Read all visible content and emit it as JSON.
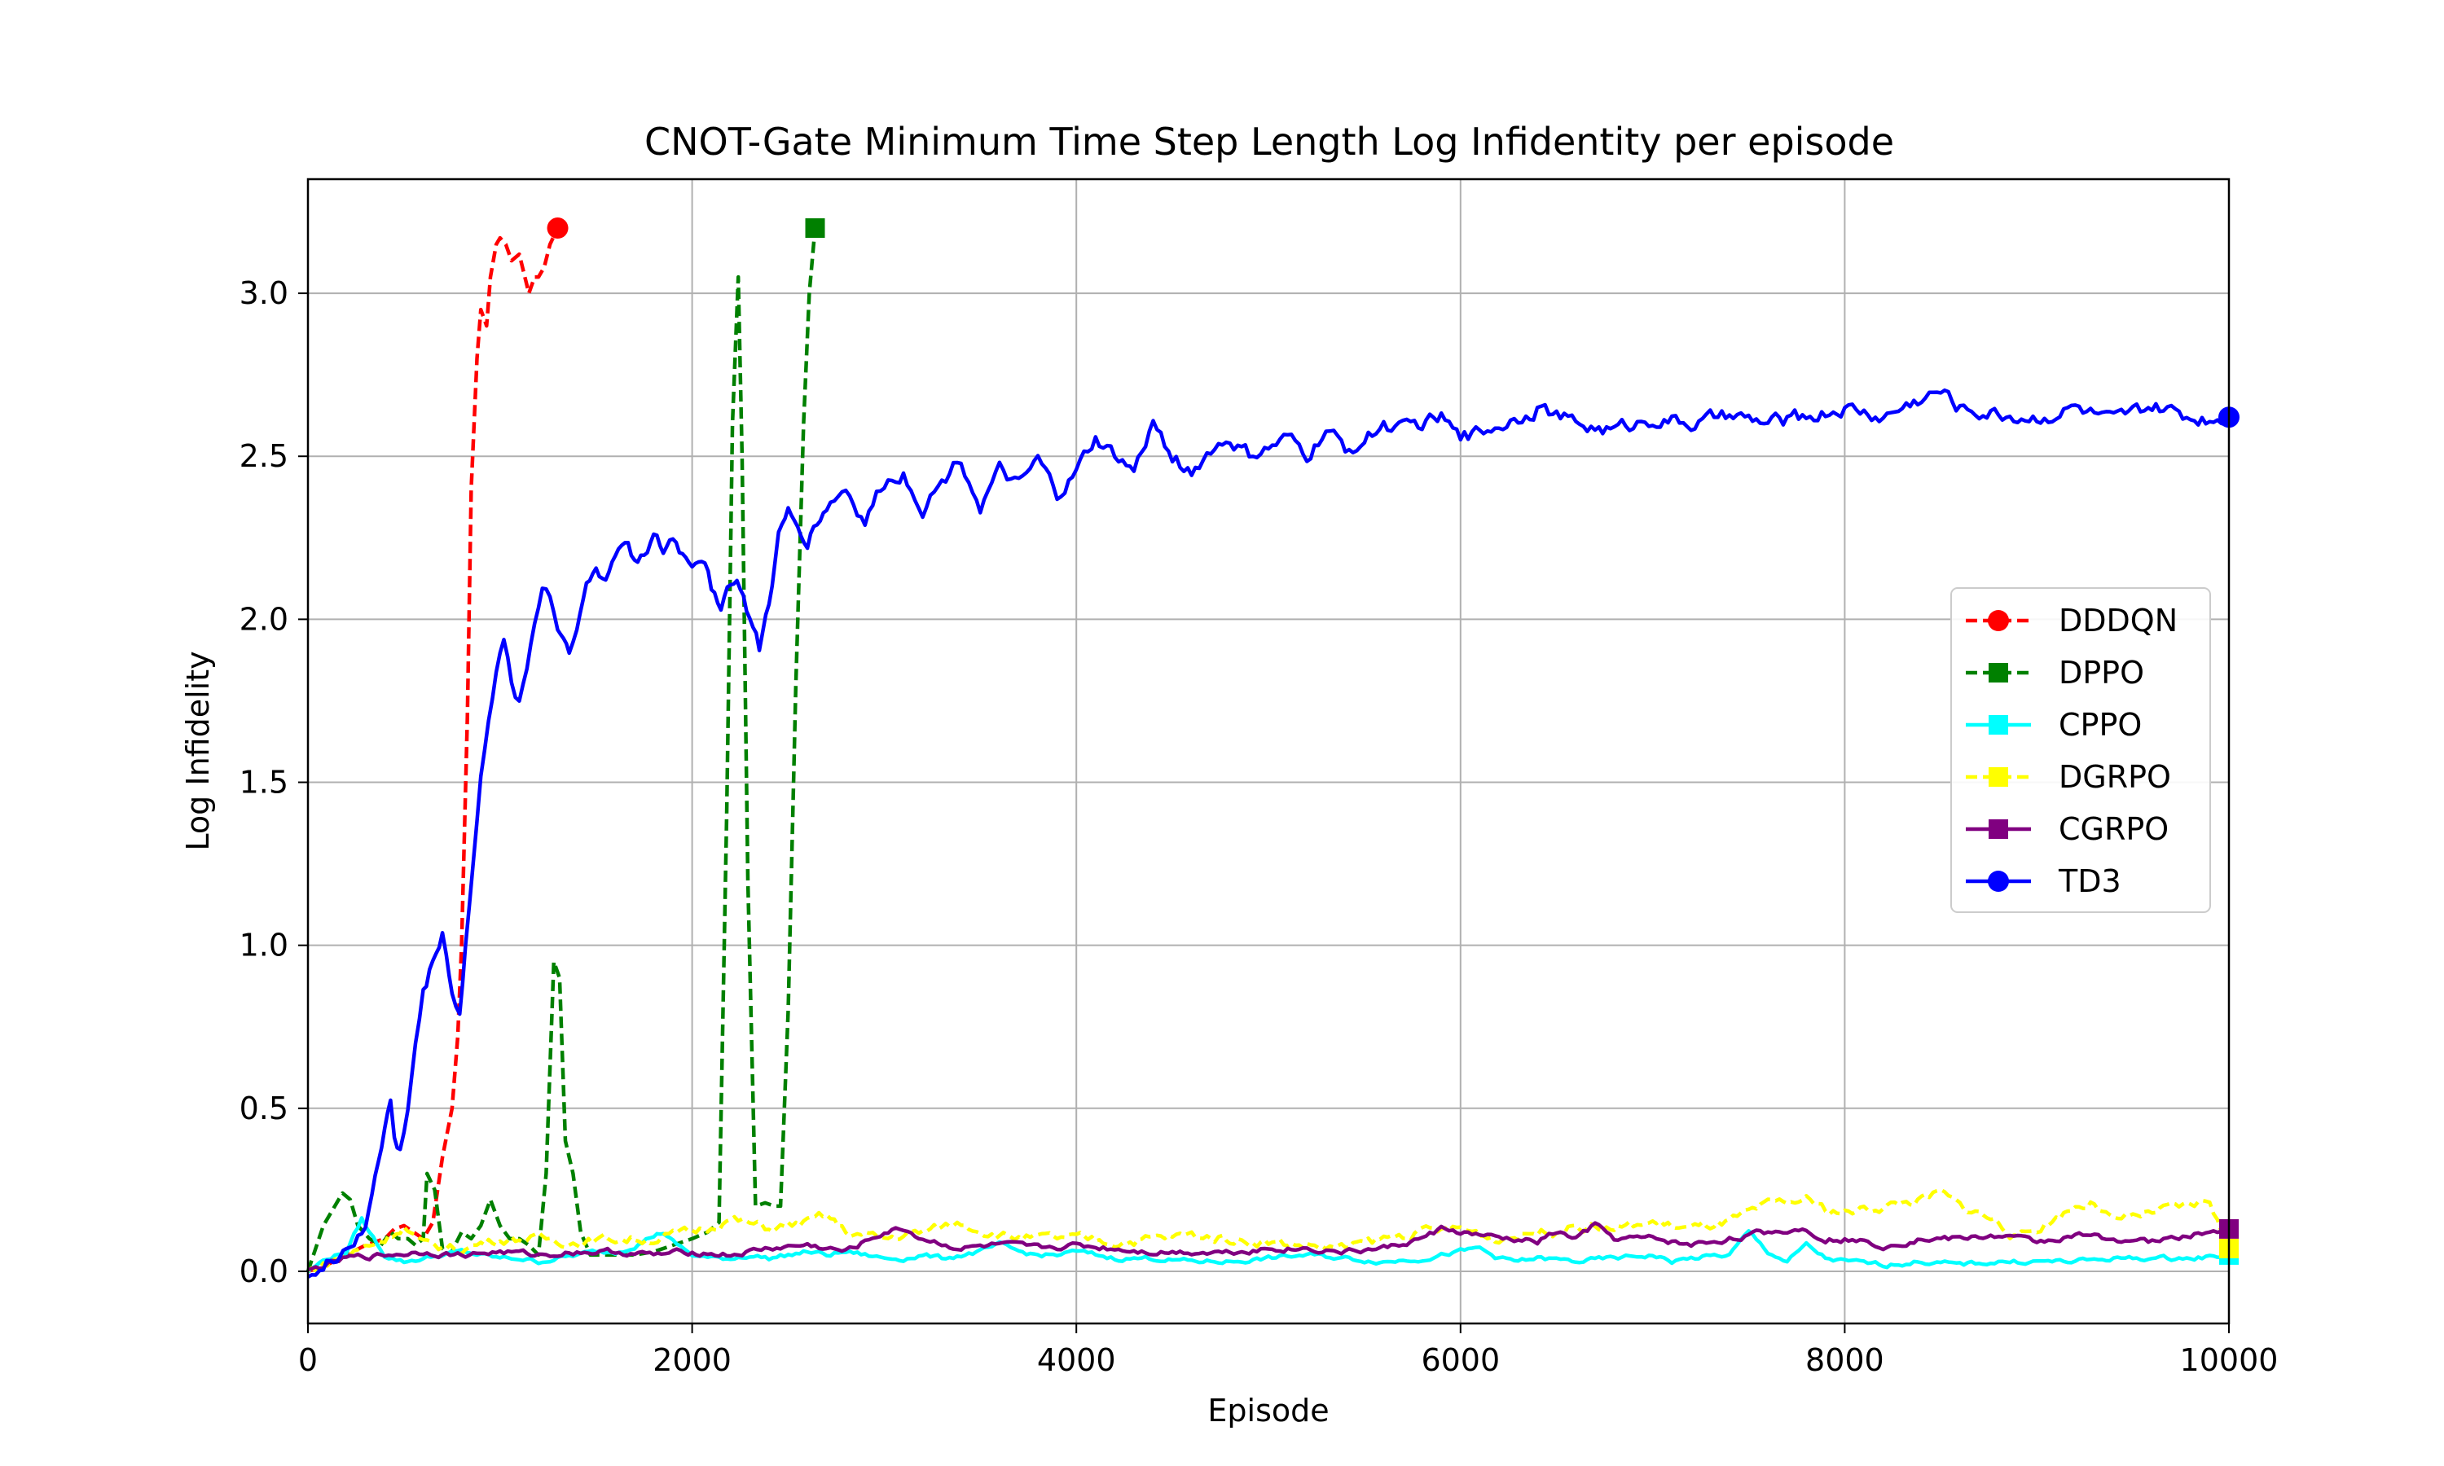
{
  "chart_data": {
    "type": "line",
    "title": "CNOT-Gate Minimum Time Step Length Log Infidentity per episode",
    "xlabel": "Episode",
    "ylabel": "Log Infidelity",
    "xlim": [
      0,
      10000
    ],
    "ylim": [
      -0.16,
      3.35
    ],
    "xticks": [
      0,
      2000,
      4000,
      6000,
      8000,
      10000
    ],
    "yticks": [
      0.0,
      0.5,
      1.0,
      1.5,
      2.0,
      2.5,
      3.0
    ],
    "xtick_labels": [
      "0",
      "2000",
      "4000",
      "6000",
      "8000",
      "10000"
    ],
    "ytick_labels": [
      "0.0",
      "0.5",
      "1.0",
      "1.5",
      "2.0",
      "2.5",
      "3.0"
    ],
    "grid": true,
    "legend_position": "center-right",
    "series": [
      {
        "name": "DDDQN",
        "color": "#ff0000",
        "style": "dashed",
        "marker": "circle",
        "end_marker_only": true,
        "x": [
          0,
          100,
          200,
          300,
          400,
          450,
          500,
          550,
          600,
          650,
          700,
          750,
          780,
          800,
          830,
          850,
          880,
          900,
          930,
          950,
          980,
          1000,
          1030,
          1060,
          1100,
          1150,
          1180,
          1200,
          1230,
          1260,
          1300
        ],
        "y": [
          0.0,
          0.02,
          0.05,
          0.08,
          0.1,
          0.13,
          0.14,
          0.12,
          0.1,
          0.15,
          0.35,
          0.5,
          0.72,
          1.0,
          1.7,
          2.4,
          2.8,
          2.95,
          2.9,
          3.05,
          3.15,
          3.17,
          3.15,
          3.1,
          3.12,
          3.0,
          3.05,
          3.05,
          3.08,
          3.15,
          3.2
        ]
      },
      {
        "name": "DPPO",
        "color": "#008000",
        "style": "dashed",
        "marker": "square",
        "end_marker_only": true,
        "x": [
          0,
          80,
          120,
          180,
          220,
          260,
          320,
          380,
          430,
          470,
          520,
          560,
          600,
          620,
          660,
          700,
          740,
          800,
          850,
          900,
          950,
          1000,
          1050,
          1100,
          1150,
          1200,
          1240,
          1280,
          1310,
          1340,
          1380,
          1420,
          1470,
          1520,
          1600,
          1700,
          1800,
          1900,
          2000,
          2080,
          2140,
          2180,
          2210,
          2240,
          2260,
          2290,
          2330,
          2380,
          2430,
          2460,
          2500,
          2540,
          2580,
          2610,
          2640
        ],
        "y": [
          0.0,
          0.14,
          0.18,
          0.24,
          0.22,
          0.14,
          0.1,
          0.08,
          0.12,
          0.1,
          0.1,
          0.08,
          0.1,
          0.3,
          0.25,
          0.07,
          0.05,
          0.12,
          0.1,
          0.14,
          0.22,
          0.14,
          0.1,
          0.1,
          0.08,
          0.05,
          0.3,
          0.95,
          0.9,
          0.4,
          0.3,
          0.12,
          0.05,
          0.05,
          0.05,
          0.05,
          0.06,
          0.08,
          0.1,
          0.12,
          0.15,
          1.4,
          2.6,
          3.05,
          2.5,
          1.2,
          0.2,
          0.21,
          0.2,
          0.2,
          0.8,
          1.8,
          2.6,
          3.0,
          3.2
        ]
      },
      {
        "name": "CPPO",
        "color": "#00ffff",
        "style": "solid",
        "marker": "square",
        "end_marker_only": true,
        "x": [
          0,
          100,
          200,
          280,
          320,
          400,
          500,
          600,
          700,
          800,
          900,
          1000,
          1100,
          1200,
          1300,
          1400,
          1500,
          1600,
          1700,
          1800,
          1850,
          1900,
          2000,
          2100,
          2200,
          2300,
          2400,
          2500,
          2600,
          2700,
          2800,
          2900,
          3000,
          3100,
          3200,
          3300,
          3400,
          3500,
          3600,
          3700,
          3800,
          3900,
          4000,
          4200,
          4400,
          4600,
          4800,
          5000,
          5200,
          5400,
          5600,
          5800,
          6000,
          6100,
          6200,
          6300,
          6400,
          6600,
          6800,
          7000,
          7100,
          7200,
          7400,
          7500,
          7600,
          7700,
          7800,
          7900,
          8000,
          8200,
          8400,
          8600,
          8800,
          9000,
          9200,
          9400,
          9600,
          9800,
          10000
        ],
        "y": [
          0.0,
          0.04,
          0.06,
          0.16,
          0.12,
          0.05,
          0.03,
          0.04,
          0.05,
          0.06,
          0.05,
          0.04,
          0.04,
          0.03,
          0.04,
          0.05,
          0.06,
          0.06,
          0.08,
          0.11,
          0.12,
          0.09,
          0.05,
          0.04,
          0.04,
          0.05,
          0.04,
          0.05,
          0.06,
          0.05,
          0.06,
          0.05,
          0.04,
          0.04,
          0.05,
          0.04,
          0.05,
          0.06,
          0.08,
          0.06,
          0.05,
          0.05,
          0.06,
          0.04,
          0.04,
          0.03,
          0.03,
          0.04,
          0.05,
          0.04,
          0.03,
          0.04,
          0.06,
          0.07,
          0.04,
          0.03,
          0.04,
          0.03,
          0.04,
          0.05,
          0.03,
          0.04,
          0.05,
          0.12,
          0.06,
          0.03,
          0.08,
          0.04,
          0.03,
          0.02,
          0.03,
          0.02,
          0.03,
          0.03,
          0.03,
          0.04,
          0.04,
          0.04,
          0.05
        ]
      },
      {
        "name": "DGRPO",
        "color": "#ffff00",
        "style": "dashed",
        "marker": "square",
        "end_marker_only": true,
        "x": [
          0,
          200,
          400,
          500,
          600,
          800,
          1000,
          1200,
          1400,
          1600,
          1800,
          2000,
          2100,
          2200,
          2400,
          2600,
          2700,
          2800,
          3000,
          3200,
          3400,
          3600,
          3800,
          4000,
          4200,
          4400,
          4600,
          4800,
          5000,
          5200,
          5400,
          5600,
          5800,
          6000,
          6200,
          6400,
          6600,
          6800,
          7000,
          7200,
          7400,
          7600,
          7800,
          7900,
          8000,
          8200,
          8400,
          8500,
          8600,
          8700,
          8800,
          8900,
          9000,
          9200,
          9300,
          9400,
          9600,
          9800,
          9900,
          10000
        ],
        "y": [
          0.0,
          0.05,
          0.1,
          0.14,
          0.08,
          0.07,
          0.1,
          0.1,
          0.09,
          0.1,
          0.1,
          0.12,
          0.14,
          0.16,
          0.13,
          0.15,
          0.17,
          0.12,
          0.1,
          0.12,
          0.15,
          0.11,
          0.1,
          0.1,
          0.09,
          0.1,
          0.11,
          0.1,
          0.09,
          0.08,
          0.07,
          0.1,
          0.12,
          0.13,
          0.1,
          0.12,
          0.14,
          0.13,
          0.15,
          0.13,
          0.15,
          0.2,
          0.22,
          0.19,
          0.18,
          0.2,
          0.22,
          0.24,
          0.2,
          0.18,
          0.15,
          0.1,
          0.13,
          0.2,
          0.21,
          0.15,
          0.18,
          0.2,
          0.22,
          0.07
        ]
      },
      {
        "name": "CGRPO",
        "color": "#800080",
        "style": "solid",
        "marker": "square",
        "end_marker_only": true,
        "x": [
          0,
          200,
          400,
          600,
          800,
          1000,
          1200,
          1400,
          1600,
          1800,
          2000,
          2200,
          2400,
          2600,
          2800,
          3000,
          3100,
          3200,
          3400,
          3600,
          3800,
          4000,
          4200,
          4400,
          4600,
          4800,
          5000,
          5200,
          5400,
          5600,
          5800,
          5900,
          6000,
          6200,
          6400,
          6500,
          6600,
          6700,
          6800,
          7000,
          7200,
          7400,
          7600,
          7800,
          7900,
          8000,
          8200,
          8400,
          8600,
          8800,
          9000,
          9200,
          9400,
          9600,
          9800,
          10000
        ],
        "y": [
          0.0,
          0.04,
          0.05,
          0.06,
          0.05,
          0.06,
          0.05,
          0.06,
          0.06,
          0.05,
          0.06,
          0.05,
          0.07,
          0.08,
          0.06,
          0.12,
          0.13,
          0.1,
          0.07,
          0.08,
          0.07,
          0.08,
          0.07,
          0.06,
          0.06,
          0.06,
          0.07,
          0.07,
          0.06,
          0.07,
          0.1,
          0.13,
          0.12,
          0.1,
          0.09,
          0.12,
          0.1,
          0.14,
          0.1,
          0.1,
          0.08,
          0.1,
          0.12,
          0.13,
          0.1,
          0.1,
          0.08,
          0.1,
          0.1,
          0.11,
          0.09,
          0.11,
          0.1,
          0.09,
          0.11,
          0.13
        ]
      },
      {
        "name": "TD3",
        "color": "#0000ff",
        "style": "solid",
        "marker": "circle",
        "end_marker_only": true,
        "x": [
          0,
          80,
          150,
          200,
          260,
          300,
          350,
          400,
          430,
          450,
          480,
          520,
          560,
          600,
          650,
          700,
          720,
          750,
          790,
          820,
          860,
          900,
          940,
          980,
          1020,
          1060,
          1100,
          1140,
          1180,
          1220,
          1260,
          1300,
          1330,
          1360,
          1400,
          1450,
          1500,
          1550,
          1600,
          1650,
          1700,
          1750,
          1800,
          1850,
          1900,
          1950,
          2000,
          2050,
          2100,
          2150,
          2200,
          2250,
          2300,
          2350,
          2400,
          2450,
          2500,
          2550,
          2600,
          2650,
          2700,
          2800,
          2900,
          3000,
          3100,
          3200,
          3300,
          3400,
          3500,
          3600,
          3700,
          3800,
          3900,
          4000,
          4100,
          4200,
          4300,
          4400,
          4500,
          4600,
          4700,
          4800,
          4900,
          5000,
          5100,
          5200,
          5300,
          5400,
          5500,
          5600,
          5700,
          5800,
          5900,
          6000,
          6200,
          6400,
          6600,
          6800,
          7000,
          7200,
          7400,
          7600,
          7800,
          8000,
          8200,
          8400,
          8500,
          8600,
          8800,
          9000,
          9200,
          9400,
          9600,
          9800,
          10000
        ],
        "y": [
          0.0,
          0.0,
          0.05,
          0.08,
          0.1,
          0.12,
          0.3,
          0.45,
          0.52,
          0.4,
          0.36,
          0.5,
          0.7,
          0.85,
          0.95,
          1.05,
          0.98,
          0.85,
          0.8,
          1.0,
          1.25,
          1.5,
          1.7,
          1.85,
          1.92,
          1.8,
          1.75,
          1.85,
          2.0,
          2.1,
          2.08,
          1.98,
          1.95,
          1.9,
          2.0,
          2.1,
          2.15,
          2.12,
          2.2,
          2.25,
          2.18,
          2.22,
          2.25,
          2.2,
          2.25,
          2.2,
          2.18,
          2.2,
          2.1,
          2.05,
          2.12,
          2.1,
          2.0,
          1.9,
          2.05,
          2.25,
          2.32,
          2.28,
          2.25,
          2.3,
          2.35,
          2.4,
          2.3,
          2.42,
          2.45,
          2.35,
          2.42,
          2.5,
          2.35,
          2.45,
          2.4,
          2.48,
          2.38,
          2.45,
          2.55,
          2.5,
          2.45,
          2.6,
          2.5,
          2.45,
          2.52,
          2.55,
          2.5,
          2.52,
          2.55,
          2.5,
          2.58,
          2.52,
          2.55,
          2.6,
          2.58,
          2.6,
          2.62,
          2.55,
          2.6,
          2.65,
          2.6,
          2.58,
          2.62,
          2.6,
          2.62,
          2.6,
          2.62,
          2.65,
          2.62,
          2.68,
          2.7,
          2.65,
          2.63,
          2.62,
          2.65,
          2.6,
          2.65,
          2.62,
          2.62
        ],
        "_note": ""
      }
    ]
  }
}
